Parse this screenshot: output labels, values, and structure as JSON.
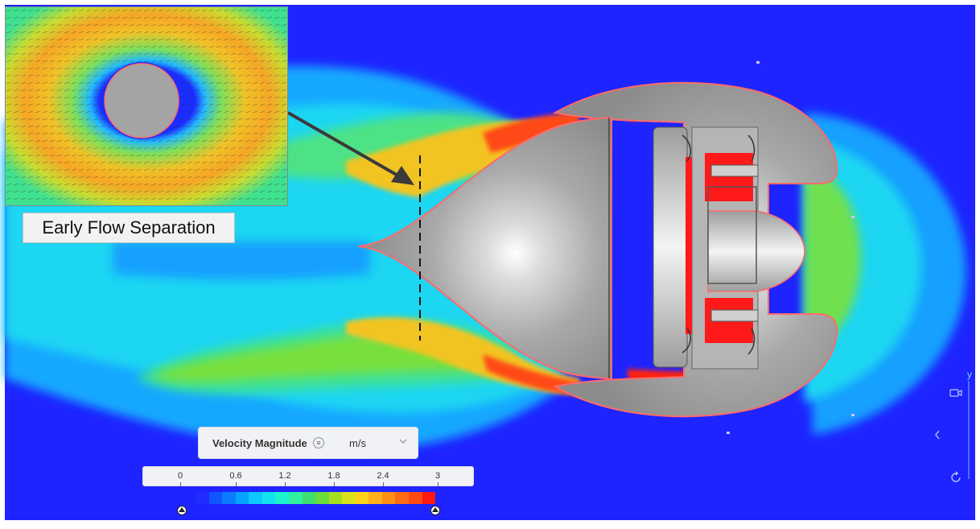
{
  "inset": {
    "label": "Early Flow Separation"
  },
  "legend": {
    "title": "Velocity Magnitude",
    "info_icon": "info-icon",
    "unit": "m/s",
    "chevron_icon": "chevron-down-icon",
    "ticks": [
      "0",
      "0.6",
      "1.2",
      "1.8",
      "2.4",
      "3"
    ],
    "range": [
      0,
      3
    ],
    "colors": [
      "#1f2bff",
      "#1055ff",
      "#0a7dff",
      "#05a2ff",
      "#0cc8ff",
      "#12e2f0",
      "#1ff2d0",
      "#2ef0a0",
      "#40e070",
      "#6bdc3a",
      "#a7e021",
      "#d9e21a",
      "#ffd21a",
      "#ffb119",
      "#ff8f16",
      "#ff6b12",
      "#ff4a10",
      "#ff1a12"
    ]
  },
  "axes": {
    "y_label": "y"
  },
  "icons": [
    "camera-icon",
    "chevron-left-icon",
    "rotate-icon"
  ]
}
